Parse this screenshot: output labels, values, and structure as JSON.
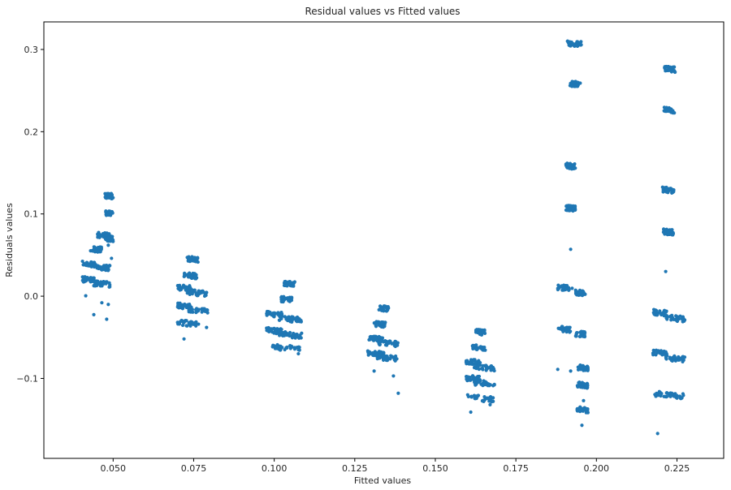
{
  "chart_data": {
    "type": "scatter",
    "title": "Residual values vs Fitted values",
    "xlabel": "Fitted values",
    "ylabel": "Residuals values",
    "xlim": [
      0.0285,
      0.2395
    ],
    "ylim": [
      -0.1972,
      0.3335
    ],
    "xticks": [
      0.05,
      0.075,
      0.1,
      0.125,
      0.15,
      0.175,
      0.2,
      0.225
    ],
    "xtick_labels": [
      "0.050",
      "0.075",
      "0.100",
      "0.125",
      "0.150",
      "0.175",
      "0.200",
      "0.225"
    ],
    "yticks": [
      -0.1,
      0.0,
      0.1,
      0.2,
      0.3
    ],
    "ytick_labels": [
      "−0.1",
      "0.0",
      "0.1",
      "0.2",
      "0.3"
    ],
    "grid": false,
    "marker_color": "#1f77b4",
    "series": [
      {
        "clusters": [
          {
            "x0": 0.0405,
            "x1": 0.0445,
            "y": 0.039
          },
          {
            "x0": 0.0405,
            "x1": 0.0445,
            "y": 0.02
          },
          {
            "x0": 0.044,
            "x1": 0.049,
            "y": 0.035
          },
          {
            "x0": 0.044,
            "x1": 0.049,
            "y": 0.015
          },
          {
            "x0": 0.043,
            "x1": 0.0465,
            "y": 0.057
          },
          {
            "x0": 0.045,
            "x1": 0.049,
            "y": 0.074
          },
          {
            "x0": 0.0475,
            "x1": 0.05,
            "y": 0.122
          },
          {
            "x0": 0.0475,
            "x1": 0.05,
            "y": 0.101
          },
          {
            "x0": 0.0475,
            "x1": 0.05,
            "y": 0.07
          },
          {
            "x0": 0.07,
            "x1": 0.074,
            "y": 0.01
          },
          {
            "x0": 0.073,
            "x1": 0.0795,
            "y": 0.004
          },
          {
            "x0": 0.07,
            "x1": 0.074,
            "y": -0.012
          },
          {
            "x0": 0.0735,
            "x1": 0.0795,
            "y": -0.017
          },
          {
            "x0": 0.072,
            "x1": 0.076,
            "y": 0.025
          },
          {
            "x0": 0.073,
            "x1": 0.0765,
            "y": 0.045
          },
          {
            "x0": 0.07,
            "x1": 0.076,
            "y": -0.033
          },
          {
            "x0": 0.0975,
            "x1": 0.1025,
            "y": -0.022
          },
          {
            "x0": 0.1015,
            "x1": 0.1085,
            "y": -0.028
          },
          {
            "x0": 0.0975,
            "x1": 0.1025,
            "y": -0.042
          },
          {
            "x0": 0.1015,
            "x1": 0.1085,
            "y": -0.047
          },
          {
            "x0": 0.102,
            "x1": 0.1055,
            "y": -0.004
          },
          {
            "x0": 0.103,
            "x1": 0.1065,
            "y": 0.015
          },
          {
            "x0": 0.0995,
            "x1": 0.108,
            "y": -0.063
          },
          {
            "x0": 0.129,
            "x1": 0.134,
            "y": -0.052
          },
          {
            "x0": 0.132,
            "x1": 0.1385,
            "y": -0.057
          },
          {
            "x0": 0.129,
            "x1": 0.134,
            "y": -0.07
          },
          {
            "x0": 0.132,
            "x1": 0.1385,
            "y": -0.075
          },
          {
            "x0": 0.131,
            "x1": 0.1345,
            "y": -0.034
          },
          {
            "x0": 0.1325,
            "x1": 0.1355,
            "y": -0.015
          },
          {
            "x0": 0.1595,
            "x1": 0.164,
            "y": -0.08
          },
          {
            "x0": 0.162,
            "x1": 0.1685,
            "y": -0.087
          },
          {
            "x0": 0.1595,
            "x1": 0.164,
            "y": -0.1
          },
          {
            "x0": 0.162,
            "x1": 0.1685,
            "y": -0.106
          },
          {
            "x0": 0.1615,
            "x1": 0.1655,
            "y": -0.063
          },
          {
            "x0": 0.1625,
            "x1": 0.1655,
            "y": -0.044
          },
          {
            "x0": 0.16,
            "x1": 0.168,
            "y": -0.124
          },
          {
            "x0": 0.188,
            "x1": 0.1925,
            "y": 0.01
          },
          {
            "x0": 0.1935,
            "x1": 0.1965,
            "y": 0.004
          },
          {
            "x0": 0.188,
            "x1": 0.192,
            "y": -0.04
          },
          {
            "x0": 0.1935,
            "x1": 0.1965,
            "y": -0.046
          },
          {
            "x0": 0.194,
            "x1": 0.1975,
            "y": -0.087
          },
          {
            "x0": 0.1905,
            "x1": 0.1935,
            "y": 0.158
          },
          {
            "x0": 0.1905,
            "x1": 0.1935,
            "y": 0.107
          },
          {
            "x0": 0.191,
            "x1": 0.1955,
            "y": 0.307
          },
          {
            "x0": 0.1915,
            "x1": 0.195,
            "y": 0.258
          },
          {
            "x0": 0.194,
            "x1": 0.1975,
            "y": -0.108
          },
          {
            "x0": 0.194,
            "x1": 0.1975,
            "y": -0.138
          },
          {
            "x0": 0.2175,
            "x1": 0.222,
            "y": -0.02
          },
          {
            "x0": 0.2215,
            "x1": 0.2275,
            "y": -0.027
          },
          {
            "x0": 0.2175,
            "x1": 0.222,
            "y": -0.069
          },
          {
            "x0": 0.2215,
            "x1": 0.2275,
            "y": -0.076
          },
          {
            "x0": 0.2205,
            "x1": 0.224,
            "y": 0.129
          },
          {
            "x0": 0.2205,
            "x1": 0.224,
            "y": 0.078
          },
          {
            "x0": 0.221,
            "x1": 0.2245,
            "y": 0.276
          },
          {
            "x0": 0.221,
            "x1": 0.2245,
            "y": 0.226
          },
          {
            "x0": 0.218,
            "x1": 0.227,
            "y": -0.12
          }
        ],
        "outliers": [
          [
            0.044,
            -0.0225
          ],
          [
            0.0415,
            0.0005
          ],
          [
            0.0465,
            -0.008
          ],
          [
            0.0485,
            -0.01
          ],
          [
            0.048,
            -0.028
          ],
          [
            0.0485,
            0.062
          ],
          [
            0.0495,
            0.046
          ],
          [
            0.072,
            -0.052
          ],
          [
            0.0765,
            -0.034
          ],
          [
            0.079,
            -0.038
          ],
          [
            0.104,
            -0.062
          ],
          [
            0.1075,
            -0.07
          ],
          [
            0.131,
            -0.091
          ],
          [
            0.137,
            -0.097
          ],
          [
            0.1385,
            -0.118
          ],
          [
            0.161,
            -0.141
          ],
          [
            0.167,
            -0.132
          ],
          [
            0.165,
            -0.128
          ],
          [
            0.188,
            -0.089
          ],
          [
            0.192,
            -0.091
          ],
          [
            0.192,
            0.057
          ],
          [
            0.1955,
            -0.157
          ],
          [
            0.196,
            -0.127
          ],
          [
            0.219,
            -0.167
          ],
          [
            0.2215,
            0.03
          ],
          [
            0.225,
            -0.124
          ],
          [
            0.223,
            -0.122
          ]
        ]
      }
    ]
  }
}
